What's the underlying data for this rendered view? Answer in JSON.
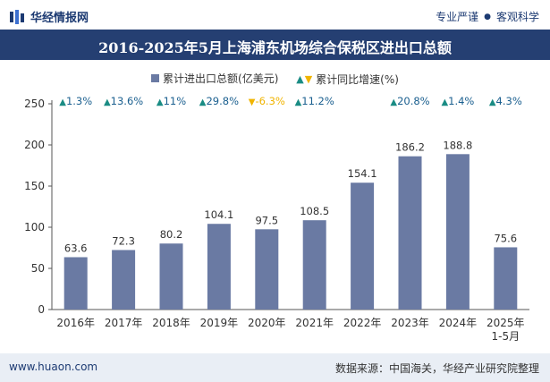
{
  "header": {
    "brand": "华经情报网",
    "slogan_left": "专业严谨",
    "slogan_right": "客观科学"
  },
  "title": "2016-2025年5月上海浦东机场综合保税区进出口总额",
  "legend": {
    "bar_label": "累计进出口总额(亿美元)",
    "growth_label": "累计同比增速(%)"
  },
  "colors": {
    "bar": "#6a7aa3",
    "growth_up": "#1a8c84",
    "growth_down": "#f0b400",
    "title_bg": "#253f72"
  },
  "footer": {
    "website": "www.huaon.com",
    "source": "数据来源：中国海关，华经产业研究院整理"
  },
  "chart_data": {
    "type": "bar",
    "categories": [
      "2016年",
      "2017年",
      "2018年",
      "2019年",
      "2020年",
      "2021年",
      "2022年",
      "2023年",
      "2024年",
      "2025年\n1-5月"
    ],
    "series": [
      {
        "name": "累计进出口总额(亿美元)",
        "values": [
          63.6,
          72.3,
          80.2,
          104.1,
          97.5,
          108.5,
          154.1,
          186.2,
          188.8,
          75.6
        ]
      }
    ],
    "growth": {
      "name": "累计同比增速(%)",
      "labels": [
        "1.3%",
        "13.6%",
        "11%",
        "29.8%",
        "-6.3%",
        "11.2%",
        null,
        "20.8%",
        "1.4%",
        "4.3%"
      ],
      "direction": [
        "up",
        "up",
        "up",
        "up",
        "down",
        "up",
        null,
        "up",
        "up",
        "up"
      ]
    },
    "ylim": [
      0,
      250
    ],
    "yticks": [
      0,
      50,
      100,
      150,
      200,
      250
    ],
    "xlabel": "",
    "ylabel": ""
  }
}
